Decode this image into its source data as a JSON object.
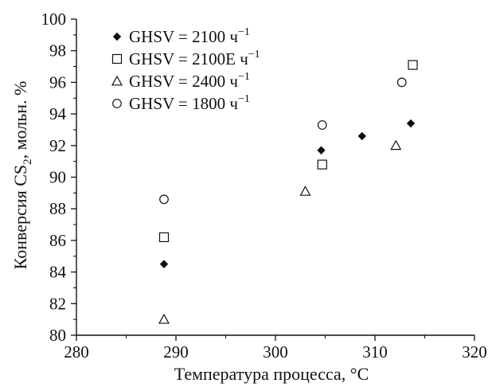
{
  "chart_data": {
    "type": "scatter",
    "xlabel": "Температура процесса, °C",
    "ylabel_prefix": "Конверсия CS",
    "ylabel_sub": "2",
    "ylabel_suffix": ", мольн. %",
    "xlim": [
      280,
      320
    ],
    "ylim": [
      80,
      100
    ],
    "x_ticks": [
      "280",
      "290",
      "300",
      "310",
      "320"
    ],
    "y_ticks": [
      "80",
      "82",
      "84",
      "86",
      "88",
      "90",
      "92",
      "94",
      "96",
      "98",
      "100"
    ],
    "grid": false,
    "legend_position": "top-left",
    "series": [
      {
        "name": "GHSV = 2100 ч−1",
        "name_main": "GHSV = 2100 ч",
        "name_sup": "−1",
        "marker": "filled-diamond",
        "x": [
          288.8,
          304.6,
          308.7,
          313.6
        ],
        "y": [
          84.5,
          91.7,
          92.6,
          93.4
        ]
      },
      {
        "name": "GHSV = 2100E ч−1",
        "name_main": "GHSV = 2100E ч",
        "name_sup": "−1",
        "marker": "open-square",
        "x": [
          288.8,
          304.7,
          313.8
        ],
        "y": [
          86.2,
          90.8,
          97.1
        ]
      },
      {
        "name": "GHSV = 2400 ч−1",
        "name_main": "GHSV = 2400 ч",
        "name_sup": "−1",
        "marker": "open-triangle",
        "x": [
          288.8,
          303.0,
          312.1
        ],
        "y": [
          81.0,
          89.1,
          92.0
        ]
      },
      {
        "name": "GHSV = 1800 ч−1",
        "name_main": "GHSV = 1800 ч",
        "name_sup": "−1",
        "marker": "open-circle",
        "x": [
          288.8,
          304.7,
          312.7
        ],
        "y": [
          88.6,
          93.3,
          96.0
        ]
      }
    ]
  }
}
